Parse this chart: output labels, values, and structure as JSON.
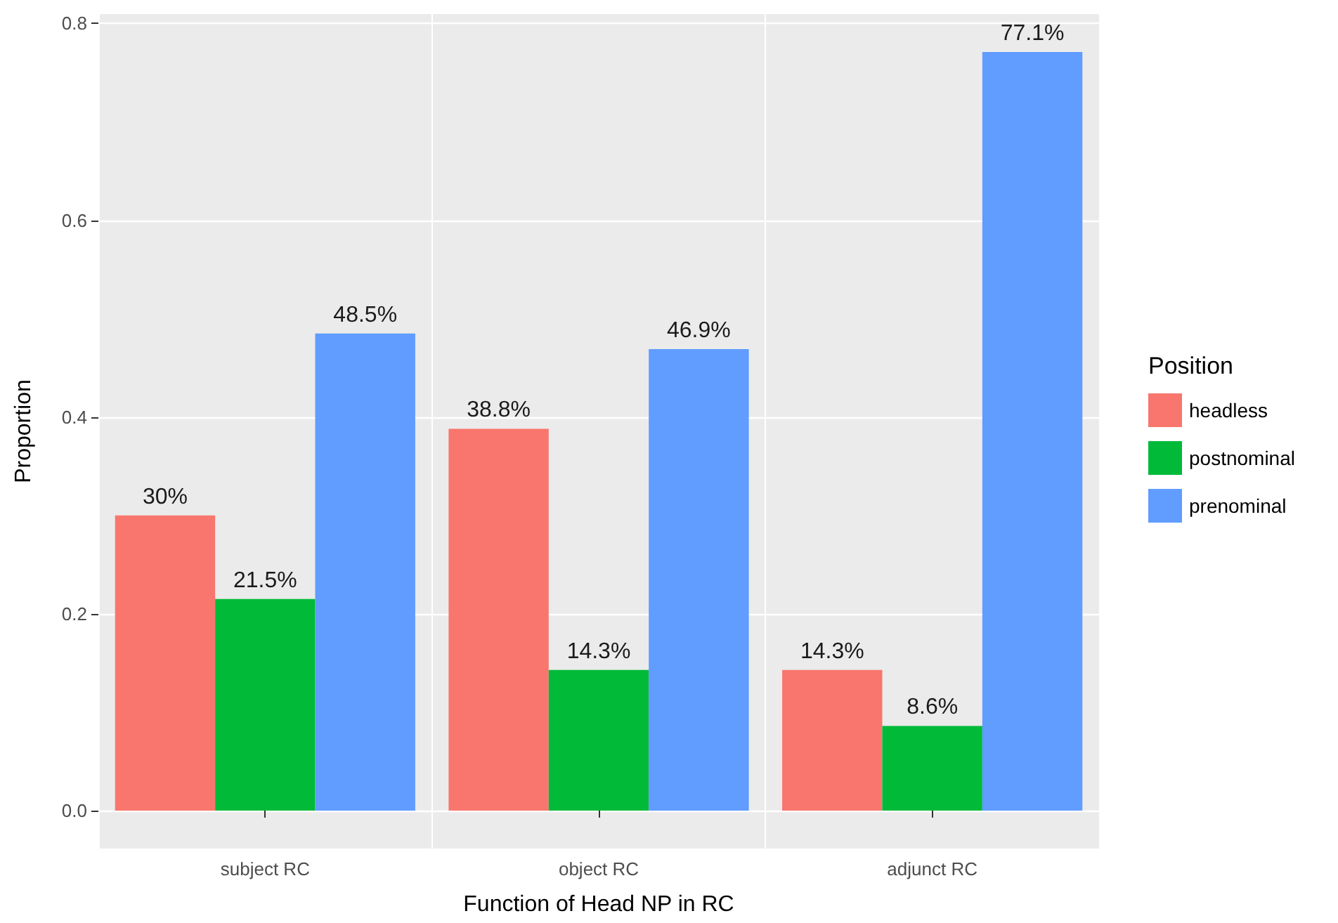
{
  "chart_data": {
    "type": "bar",
    "xlabel": "Function of Head NP in RC",
    "ylabel": "Proportion",
    "legend_title": "Position",
    "categories": [
      "subject RC",
      "object RC",
      "adjunct RC"
    ],
    "series": [
      {
        "name": "headless",
        "color": "#f8766d",
        "values": [
          0.3,
          0.388,
          0.143
        ],
        "value_labels": [
          "30%",
          "38.8%",
          "14.3%"
        ]
      },
      {
        "name": "postnominal",
        "color": "#00ba38",
        "values": [
          0.215,
          0.143,
          0.086
        ],
        "value_labels": [
          "21.5%",
          "14.3%",
          "8.6%"
        ]
      },
      {
        "name": "prenominal",
        "color": "#619cff",
        "values": [
          0.485,
          0.469,
          0.771
        ],
        "value_labels": [
          "48.5%",
          "46.9%",
          "77.1%"
        ]
      }
    ],
    "ylim": [
      -0.0386,
      0.8096
    ],
    "yticks": [
      {
        "value": 0,
        "label": "0.0"
      },
      {
        "value": 0.2,
        "label": "0.2"
      },
      {
        "value": 0.4,
        "label": "0.4"
      },
      {
        "value": 0.6,
        "label": "0.6"
      },
      {
        "value": 0.8,
        "label": "0.8"
      }
    ],
    "grid": true,
    "legend": "right"
  }
}
